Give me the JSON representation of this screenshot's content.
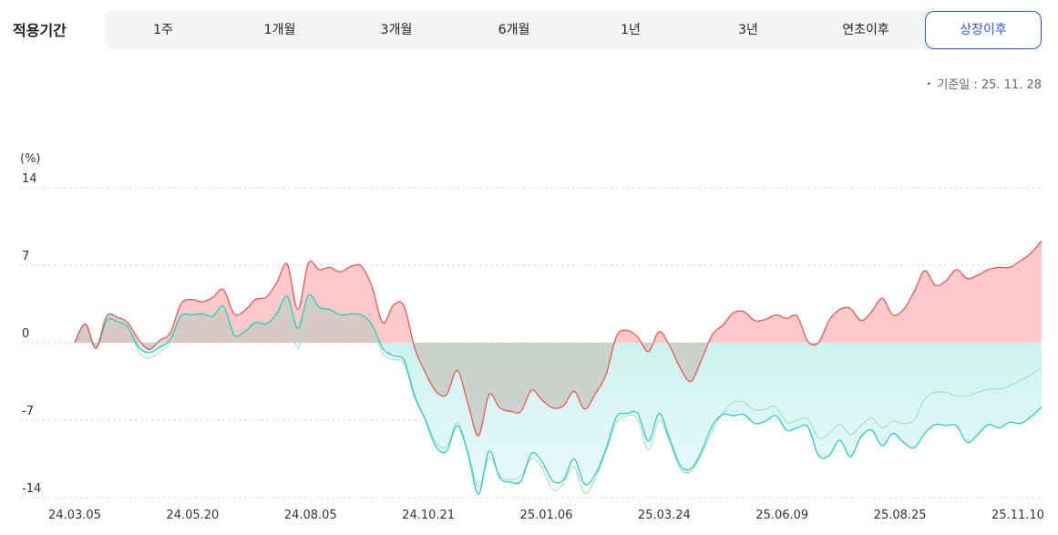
{
  "period": {
    "label": "적용기간",
    "tabs": [
      "1주",
      "1개월",
      "3개월",
      "6개월",
      "1년",
      "3년",
      "연초이후",
      "상장이후"
    ],
    "active_index": 7
  },
  "basis_date": "기준일 : 25. 11. 28",
  "colors": {
    "accent": "#2f5bd3",
    "fund_line": "#e8585a",
    "fund_fill": "#ffc9c9",
    "benchmark_line": "#2ec9bf",
    "benchmark_fill": "#c8f1ec",
    "compare_line": "#a6e3c0",
    "grid": "#d8d8d8"
  },
  "chart_data": {
    "type": "area",
    "yunit": "(%)",
    "ylim": [
      -14,
      14
    ],
    "yticks": [
      14,
      7,
      0,
      -7,
      -14
    ],
    "x_labels": [
      "24.03.05",
      "24.05.20",
      "24.08.05",
      "24.10.21",
      "25.01.06",
      "25.03.24",
      "25.06.09",
      "25.08.25",
      "25.11.10"
    ],
    "grid": true,
    "series": [
      {
        "color_key": "fund",
        "values": [
          0,
          1.7,
          -0.5,
          2.4,
          2.3,
          1.8,
          0.3,
          -0.6,
          0.2,
          0.9,
          3.5,
          3.9,
          3.7,
          4.1,
          4.8,
          2.6,
          2.9,
          3.9,
          4.1,
          5.4,
          7.1,
          3.0,
          7.2,
          6.6,
          6.8,
          6.4,
          6.9,
          6.9,
          5.0,
          1.8,
          3.4,
          3.3,
          -0.5,
          -2.7,
          -4.4,
          -4.7,
          -2.5,
          -5.5,
          -8.4,
          -4.7,
          -5.9,
          -6.2,
          -6.2,
          -4.3,
          -5.2,
          -5.9,
          -5.7,
          -4.4,
          -6.0,
          -4.6,
          -2.9,
          0.6,
          1.1,
          0.5,
          -0.8,
          1.0,
          -0.3,
          -2.3,
          -3.5,
          -1.5,
          0.7,
          1.6,
          2.7,
          2.8,
          2.0,
          2.1,
          2.5,
          2.2,
          2.4,
          0.1,
          0.0,
          2.0,
          3.0,
          3.1,
          2.0,
          2.8,
          4.0,
          2.5,
          3.0,
          4.6,
          6.5,
          5.2,
          5.6,
          6.6,
          5.8,
          6.1,
          6.6,
          6.8,
          6.8,
          7.4,
          8.1,
          9.2
        ]
      },
      {
        "color_key": "benchmark",
        "values": [
          0,
          1.7,
          -0.5,
          2.0,
          1.9,
          1.4,
          -0.4,
          -0.9,
          -0.4,
          0.3,
          2.4,
          2.5,
          2.6,
          2.4,
          3.3,
          0.7,
          1.0,
          1.8,
          1.7,
          2.6,
          4.2,
          1.3,
          4.3,
          3.2,
          3.0,
          2.5,
          2.6,
          2.5,
          1.6,
          -0.5,
          -1.2,
          -1.6,
          -4.8,
          -7.0,
          -9.4,
          -9.8,
          -7.5,
          -10.0,
          -13.7,
          -9.8,
          -12.2,
          -12.6,
          -12.5,
          -10.0,
          -10.8,
          -12.5,
          -12.4,
          -10.5,
          -12.8,
          -11.9,
          -9.6,
          -6.7,
          -6.4,
          -6.4,
          -8.9,
          -6.4,
          -8.7,
          -11.1,
          -11.4,
          -9.8,
          -7.5,
          -6.5,
          -6.6,
          -6.5,
          -7.3,
          -7.1,
          -6.6,
          -7.9,
          -7.7,
          -7.6,
          -10.2,
          -10.2,
          -8.8,
          -10.3,
          -8.5,
          -7.9,
          -9.3,
          -8.2,
          -9.0,
          -9.5,
          -8.2,
          -7.4,
          -7.5,
          -7.5,
          -9.0,
          -8.3,
          -7.4,
          -7.7,
          -7.2,
          -7.3,
          -6.7,
          -5.8
        ]
      },
      {
        "color_key": "compare",
        "values": [
          0,
          1.7,
          -0.4,
          2.2,
          2.1,
          1.6,
          -0.8,
          -1.4,
          -0.8,
          0.0,
          2.6,
          2.6,
          2.7,
          2.6,
          3.0,
          1.0,
          1.2,
          2.0,
          1.8,
          2.4,
          3.6,
          -0.5,
          3.5,
          2.8,
          2.9,
          2.6,
          2.6,
          2.5,
          1.5,
          -1.0,
          -1.5,
          -1.9,
          -5.0,
          -6.9,
          -9.0,
          -9.4,
          -7.2,
          -9.8,
          -13.0,
          -10.4,
          -12.0,
          -12.4,
          -12.0,
          -10.5,
          -11.3,
          -13.3,
          -12.7,
          -11.2,
          -13.6,
          -12.3,
          -9.8,
          -7.2,
          -6.6,
          -6.9,
          -9.7,
          -7.0,
          -9.0,
          -11.4,
          -11.6,
          -10.1,
          -8.0,
          -6.3,
          -5.4,
          -5.4,
          -6.1,
          -6.0,
          -5.8,
          -7.2,
          -7.0,
          -6.9,
          -8.6,
          -8.2,
          -7.4,
          -8.3,
          -7.5,
          -6.8,
          -7.7,
          -7.1,
          -7.3,
          -7.0,
          -5.1,
          -4.5,
          -4.5,
          -4.8,
          -4.8,
          -4.5,
          -4.2,
          -4.2,
          -3.9,
          -3.4,
          -2.9,
          -2.2
        ]
      }
    ]
  }
}
